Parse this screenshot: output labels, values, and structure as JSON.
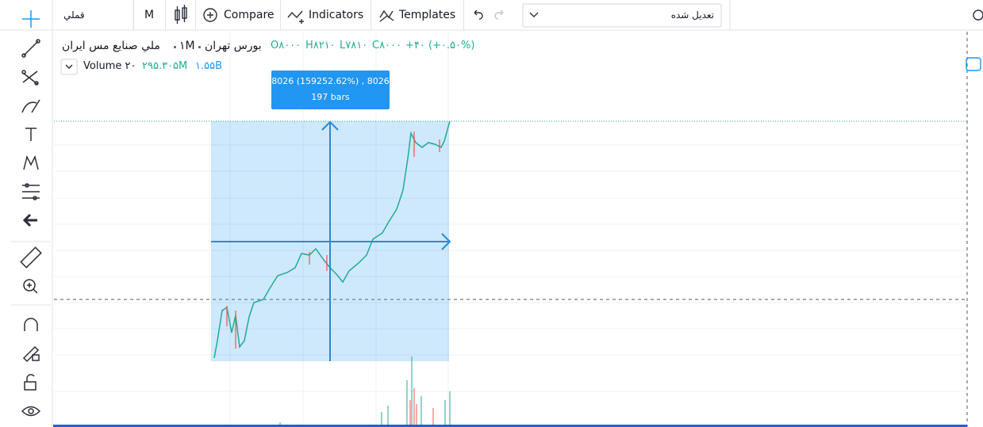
{
  "toolbar": {
    "symbol": "قملي",
    "interval": "M",
    "compare": "Compare",
    "indicators": "Indicators",
    "templates": "Templates",
    "adjustment": "تعدیل شده"
  },
  "legend": {
    "name": "ملي صنايع مس ايران",
    "interval": "۱M",
    "exchange": "بورس تهران",
    "open": "O۸۰۰۰",
    "high": "H۸۲۱۰",
    "low": "L۷۸۱۰",
    "close": "C۸۰۰۰",
    "change": "+۴۰ (+۰.۵۰%)"
  },
  "volume": {
    "label": "Volume ۲۰",
    "value": "۲۹۵.۳۰۵M",
    "ma": "۱.۵۵B"
  },
  "measure": {
    "line1": "8026 (159252.62%) , 8026",
    "line2": "197 bars"
  }
}
